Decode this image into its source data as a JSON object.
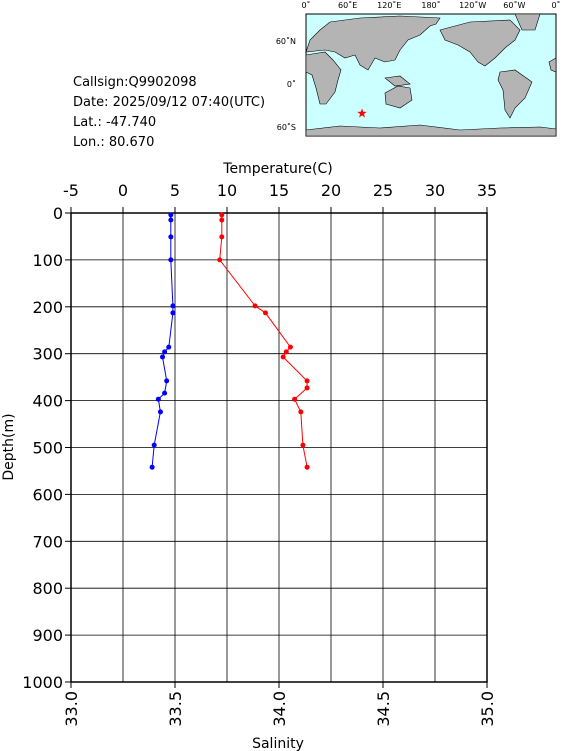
{
  "info": [
    "Callsign:Q9902098",
    "Date:  2025/09/12 07:40(UTC)",
    "Lat.:  -47.740",
    "Lon.:   80.670"
  ],
  "map": {
    "lon_labels": [
      "0˚",
      "60˚E",
      "120˚E",
      "180˚",
      "120˚W",
      "60˚W",
      "0˚"
    ],
    "lat_labels": [
      "60˚N",
      "0˚",
      "60˚S"
    ],
    "marker": {
      "lat": -47.74,
      "lon": 80.67,
      "color": "#ff0000"
    }
  },
  "chart_data": {
    "type": "line",
    "x2label": "Temperature(C)",
    "xlabel": "Salinity",
    "ylabel": "Depth(m)",
    "x2lim": [
      -5,
      35
    ],
    "x2ticks": [
      -5,
      0,
      5,
      10,
      15,
      20,
      25,
      30,
      35
    ],
    "xlim": [
      33,
      35
    ],
    "xticks": [
      {
        "value": 33,
        "label": "33.0"
      },
      {
        "value": 33.5,
        "label": "33.5"
      },
      {
        "value": 34,
        "label": "34.0"
      },
      {
        "value": 34.5,
        "label": "34.5"
      },
      {
        "value": 35,
        "label": "35.0"
      }
    ],
    "ylim": [
      1000,
      0
    ],
    "yticks": [
      0,
      100,
      200,
      300,
      400,
      500,
      600,
      700,
      800,
      900,
      1000
    ],
    "grid": true,
    "series": [
      {
        "axis": "x",
        "color": "#0000ff",
        "x": [
          33.48,
          33.48,
          33.48,
          33.48,
          33.49,
          33.49,
          33.47,
          33.45,
          33.44,
          33.46,
          33.45,
          33.42,
          33.43,
          33.4,
          33.39
        ],
        "y": [
          4,
          15,
          51,
          100,
          198,
          213,
          286,
          296,
          307,
          358,
          384,
          397,
          424,
          495,
          542
        ]
      },
      {
        "axis": "x2",
        "color": "#ff0000",
        "x": [
          9.5,
          9.5,
          9.5,
          9.3,
          12.7,
          13.7,
          16.1,
          15.7,
          15.4,
          17.7,
          17.7,
          16.5,
          17.1,
          17.3,
          17.7
        ],
        "y": [
          4,
          15,
          51,
          100,
          198,
          213,
          286,
          296,
          307,
          358,
          373,
          397,
          424,
          495,
          542
        ]
      }
    ]
  }
}
